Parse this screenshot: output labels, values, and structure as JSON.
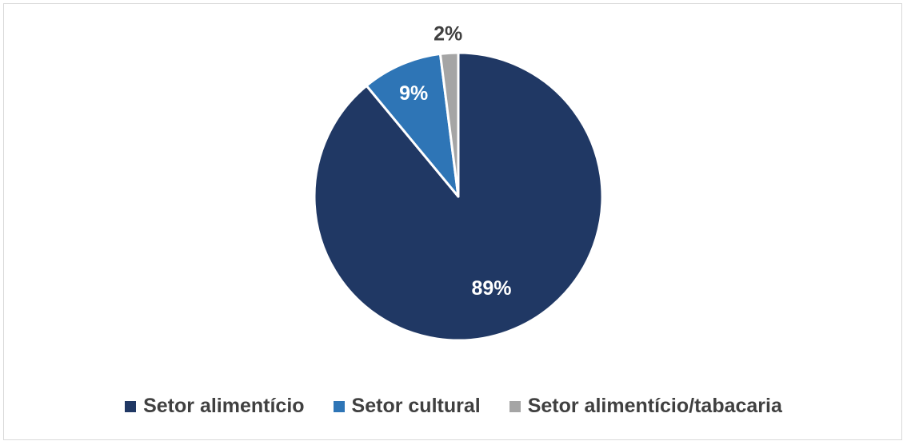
{
  "chart_data": {
    "type": "pie",
    "title": "",
    "categories": [
      "Setor alimentício",
      "Setor cultural",
      "Setor alimentício/tabacaria"
    ],
    "values": [
      89,
      9,
      2
    ],
    "labels": [
      "89%",
      "9%",
      "2%"
    ],
    "colors": [
      "#203864",
      "#2E75B6",
      "#A5A5A5"
    ],
    "label_colors": [
      "#ffffff",
      "#ffffff",
      "#404040"
    ],
    "legend_position": "bottom"
  }
}
